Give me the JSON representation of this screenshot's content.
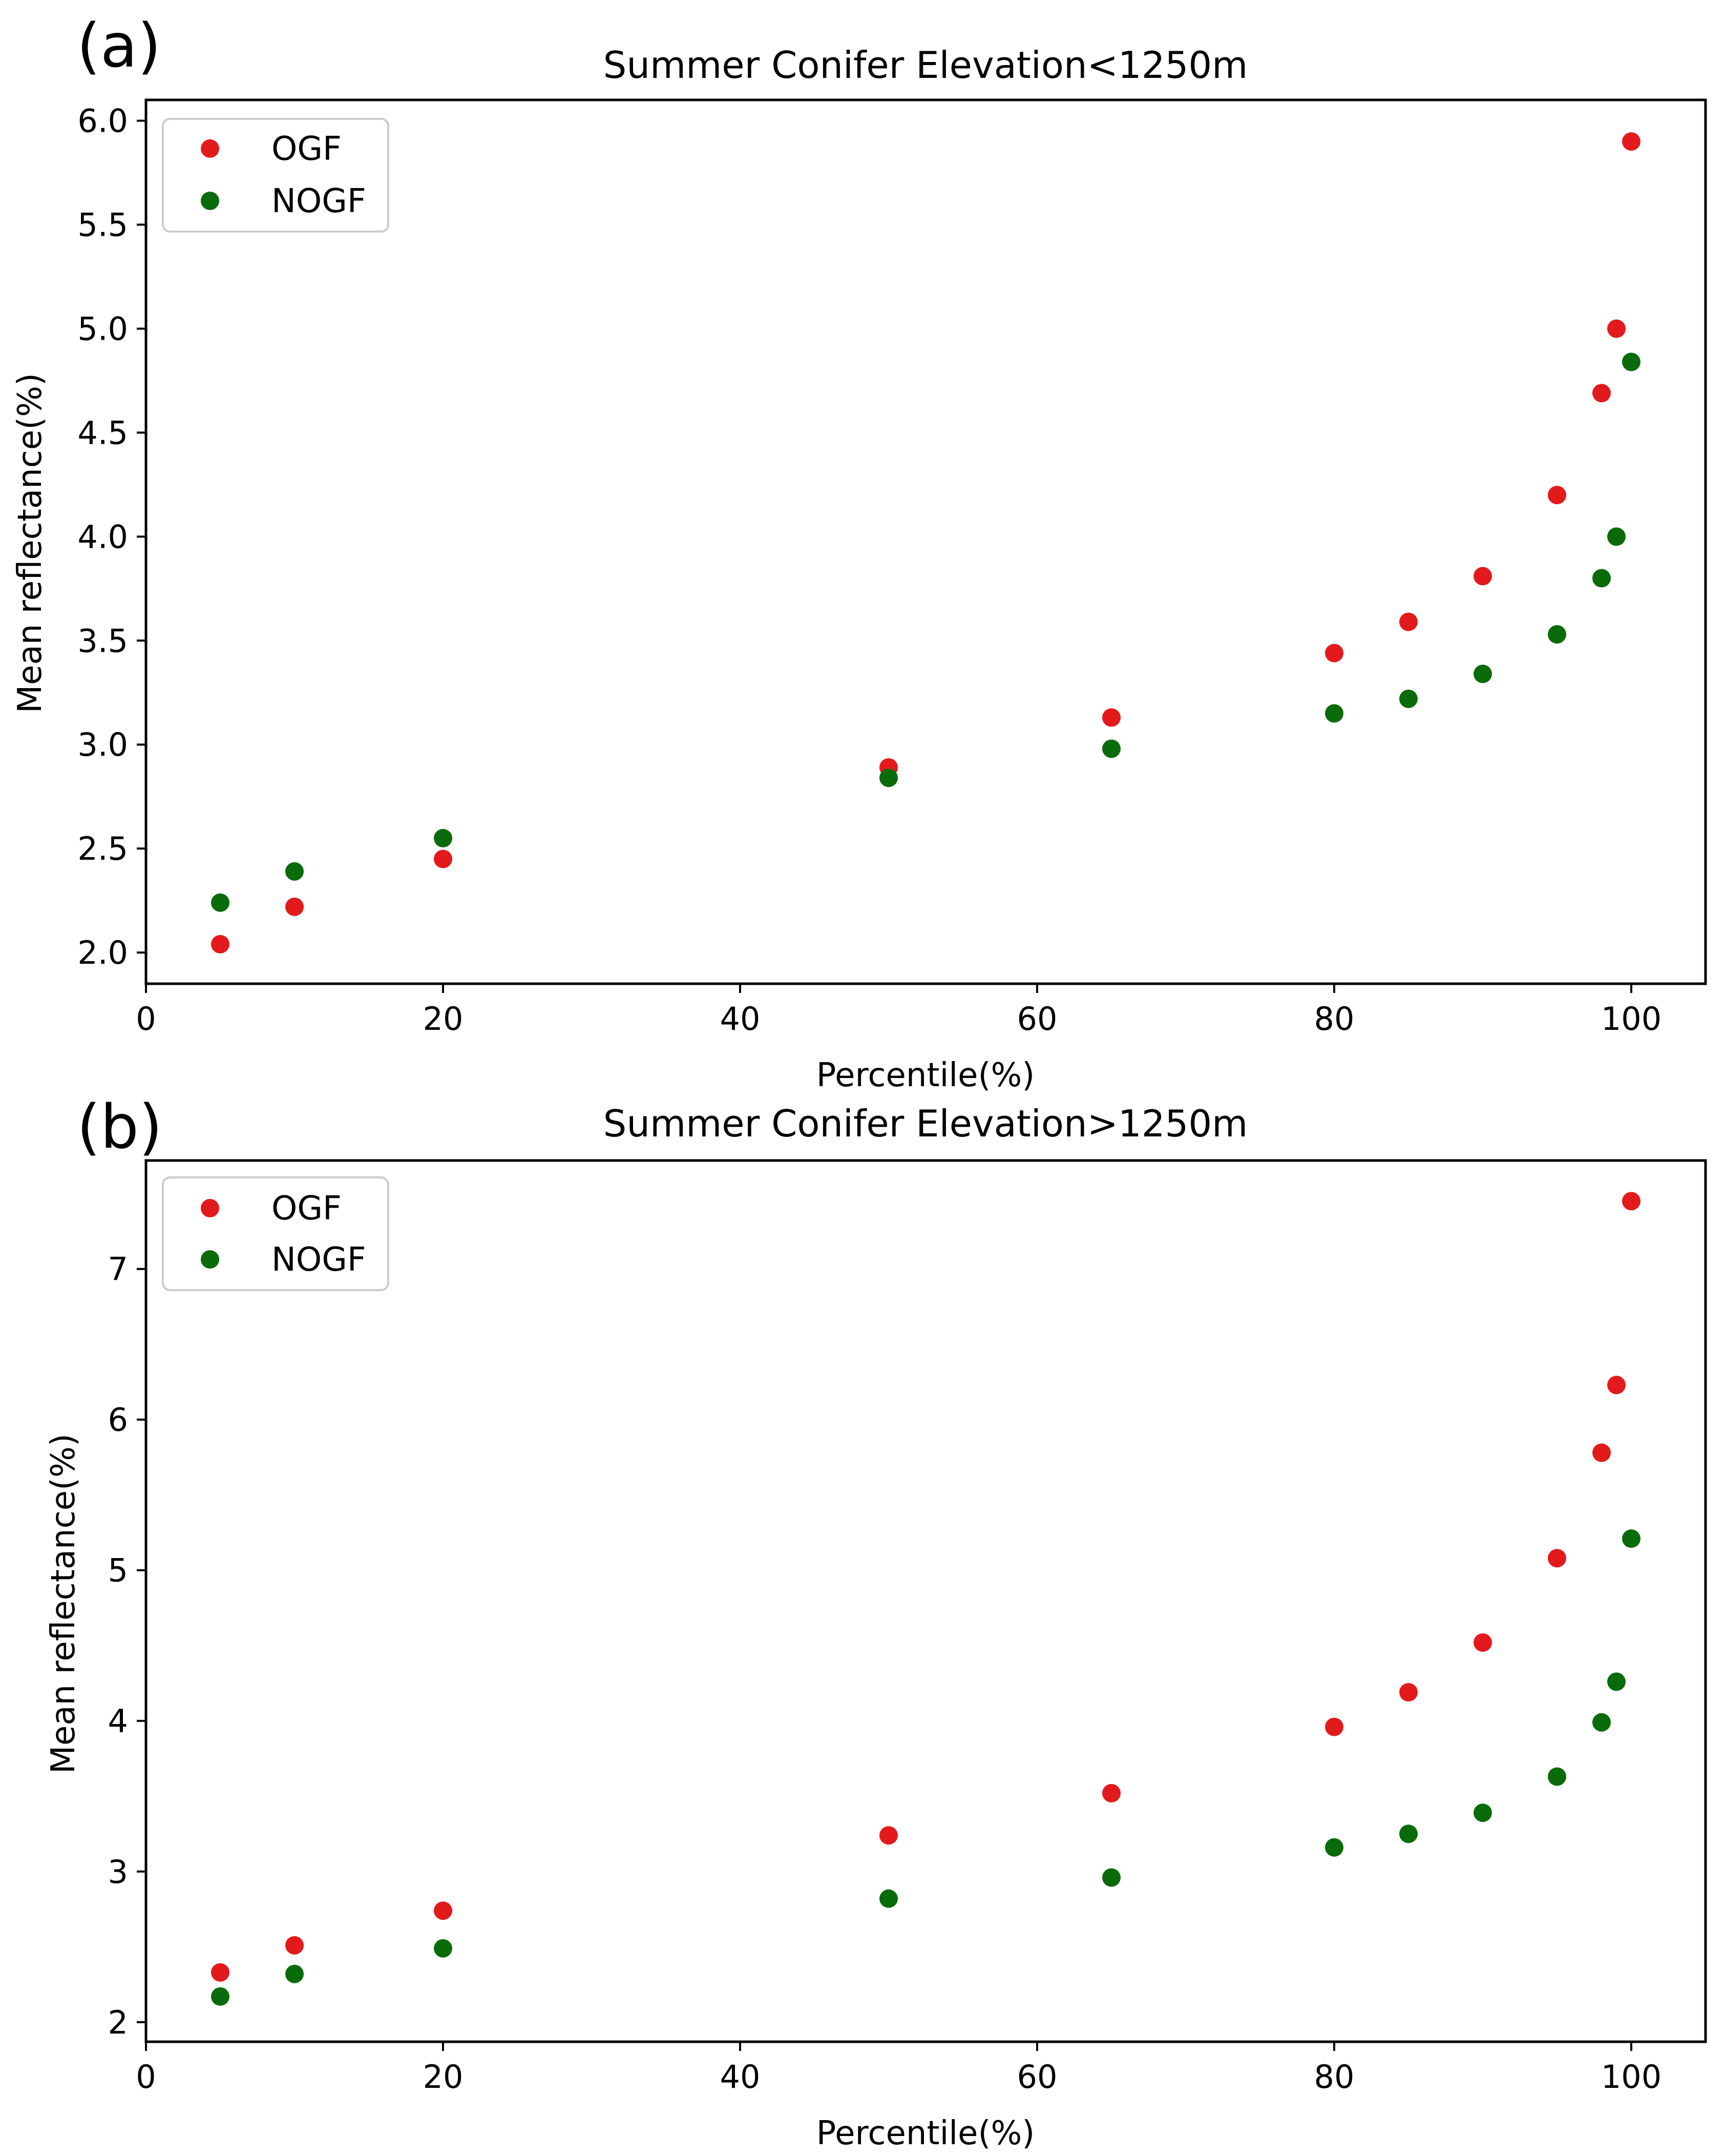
{
  "chart_data": [
    {
      "type": "scatter",
      "panel": "(a)",
      "title": "Summer Conifer Elevation<1250m",
      "xlabel": "Percentile(%)",
      "ylabel": "Mean reflectance(%)",
      "xlim": [
        0,
        105
      ],
      "ylim": [
        1.85,
        6.1
      ],
      "xticks": [
        0,
        20,
        40,
        60,
        80,
        100
      ],
      "yticks": [
        2.0,
        2.5,
        3.0,
        3.5,
        4.0,
        4.5,
        5.0,
        5.5,
        6.0
      ],
      "ytick_labels": [
        "2.0",
        "2.5",
        "3.0",
        "3.5",
        "4.0",
        "4.5",
        "5.0",
        "5.5",
        "6.0"
      ],
      "grid": false,
      "legend_position": "top-left",
      "x": [
        5,
        10,
        20,
        50,
        65,
        80,
        85,
        90,
        95,
        98,
        99,
        100
      ],
      "series": [
        {
          "name": "OGF",
          "color": "#e31a1c",
          "values": [
            2.04,
            2.22,
            2.45,
            2.89,
            3.13,
            3.44,
            3.59,
            3.81,
            4.2,
            4.69,
            5.0,
            5.9
          ]
        },
        {
          "name": "NOGF",
          "color": "#0a6b0a",
          "values": [
            2.24,
            2.39,
            2.55,
            2.84,
            2.98,
            3.15,
            3.22,
            3.34,
            3.53,
            3.8,
            4.0,
            4.84
          ]
        }
      ]
    },
    {
      "type": "scatter",
      "panel": "(b)",
      "title": "Summer Conifer Elevation>1250m",
      "xlabel": "Percentile(%)",
      "ylabel": "Mean reflectance(%)",
      "xlim": [
        0,
        105
      ],
      "ylim": [
        1.87,
        7.72
      ],
      "xticks": [
        0,
        20,
        40,
        60,
        80,
        100
      ],
      "yticks": [
        2,
        3,
        4,
        5,
        6,
        7
      ],
      "ytick_labels": [
        "2",
        "3",
        "4",
        "5",
        "6",
        "7"
      ],
      "grid": false,
      "legend_position": "top-left",
      "x": [
        5,
        10,
        20,
        50,
        65,
        80,
        85,
        90,
        95,
        98,
        99,
        100
      ],
      "series": [
        {
          "name": "OGF",
          "color": "#e31a1c",
          "values": [
            2.33,
            2.51,
            2.74,
            3.24,
            3.52,
            3.96,
            4.19,
            4.52,
            5.08,
            5.78,
            6.23,
            7.45
          ]
        },
        {
          "name": "NOGF",
          "color": "#0a6b0a",
          "values": [
            2.17,
            2.32,
            2.49,
            2.82,
            2.96,
            3.16,
            3.25,
            3.39,
            3.63,
            3.99,
            4.26,
            5.21
          ]
        }
      ]
    }
  ]
}
